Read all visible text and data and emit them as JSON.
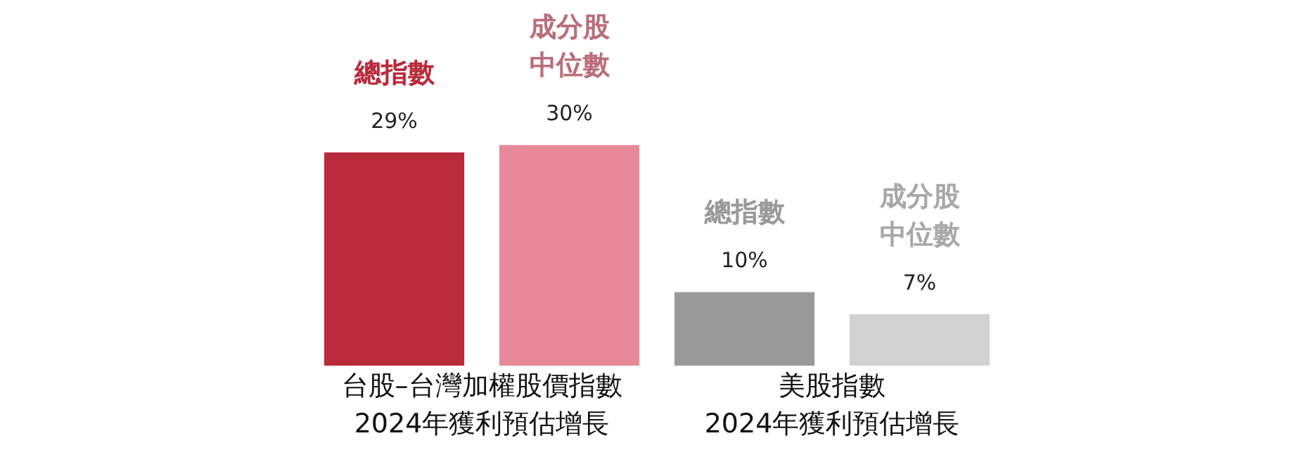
{
  "chart_data": {
    "type": "bar",
    "categories": [
      "總指數",
      "成分股中位數",
      "總指數",
      "成分股中位數"
    ],
    "values": [
      29,
      30,
      10,
      7
    ],
    "value_labels": [
      "29%",
      "30%",
      "10%",
      "7%"
    ],
    "colors": [
      "#b92b3b",
      "#e8899a",
      "#999999",
      "#d2d2d2"
    ],
    "annotations": [
      "台股–台灣加權股價指數\n2024年獲利預估增長",
      "美股指數\n2024年獲利預估增長"
    ],
    "legend": false
  }
}
